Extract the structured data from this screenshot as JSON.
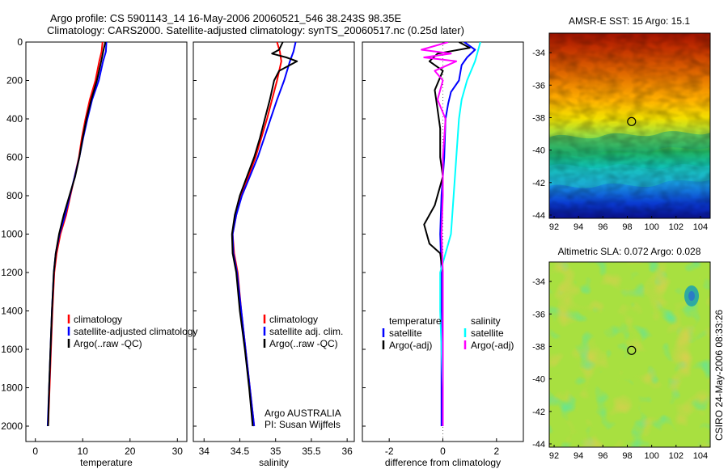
{
  "header": {
    "line1": "Argo profile: CS 5901143_14 16-May-2006 20060521_546 38.243S 98.35E",
    "line2": "Climatology: CARS2000. Satellite-adjusted climatology: synTS_20060517.nc (0.25d later)"
  },
  "side_label": "CSIRO 24-May-2006 08:33:26",
  "colors": {
    "red": "#ff0000",
    "blue": "#0000ff",
    "black": "#000000",
    "cyan": "#00ffff",
    "magenta": "#ff00ff",
    "marker": "#222222"
  },
  "chart_data": [
    {
      "type": "line",
      "xlabel": "temperature",
      "xticks": [
        0,
        10,
        20,
        30
      ],
      "xlim": [
        -2,
        32
      ],
      "yticks": [
        0,
        200,
        400,
        600,
        800,
        1000,
        1200,
        1400,
        1600,
        1800,
        2000
      ],
      "ylim": [
        2080,
        0
      ],
      "legend": [
        "climatology",
        "satellite-adjusted climatology",
        "Argo(..raw -QC)"
      ],
      "series": [
        {
          "name": "climatology",
          "color": "red",
          "points": [
            [
              14.2,
              0
            ],
            [
              14.0,
              50
            ],
            [
              13.5,
              100
            ],
            [
              12.7,
              200
            ],
            [
              11.5,
              300
            ],
            [
              10.6,
              400
            ],
            [
              9.8,
              500
            ],
            [
              9.2,
              600
            ],
            [
              8.3,
              700
            ],
            [
              7.4,
              800
            ],
            [
              6.5,
              900
            ],
            [
              5.3,
              1000
            ],
            [
              4.5,
              1100
            ],
            [
              4.0,
              1200
            ],
            [
              3.6,
              1400
            ],
            [
              3.3,
              1600
            ],
            [
              3.0,
              1800
            ],
            [
              2.7,
              2000
            ]
          ]
        },
        {
          "name": "satellite-adjusted climatology",
          "color": "blue",
          "points": [
            [
              15.0,
              0
            ],
            [
              14.9,
              50
            ],
            [
              14.3,
              100
            ],
            [
              13.4,
              200
            ],
            [
              12.0,
              300
            ],
            [
              11.0,
              400
            ],
            [
              10.1,
              500
            ],
            [
              9.3,
              600
            ],
            [
              8.3,
              700
            ],
            [
              7.3,
              800
            ],
            [
              6.3,
              900
            ],
            [
              5.1,
              1000
            ],
            [
              4.3,
              1100
            ],
            [
              3.9,
              1200
            ],
            [
              3.5,
              1400
            ],
            [
              3.2,
              1600
            ],
            [
              2.9,
              1800
            ],
            [
              2.6,
              2000
            ]
          ]
        },
        {
          "name": "Argo(..raw -QC)",
          "color": "black",
          "points": [
            [
              14.8,
              0
            ],
            [
              14.5,
              30
            ],
            [
              13.9,
              100
            ],
            [
              13.0,
              200
            ],
            [
              11.8,
              300
            ],
            [
              10.8,
              400
            ],
            [
              10.0,
              500
            ],
            [
              9.3,
              600
            ],
            [
              8.4,
              700
            ],
            [
              7.2,
              800
            ],
            [
              6.0,
              900
            ],
            [
              5.0,
              1000
            ],
            [
              4.3,
              1100
            ],
            [
              3.9,
              1200
            ],
            [
              3.5,
              1400
            ],
            [
              3.2,
              1600
            ],
            [
              2.9,
              1800
            ],
            [
              2.7,
              2000
            ]
          ]
        }
      ]
    },
    {
      "type": "line",
      "xlabel": "salinity",
      "xticks": [
        34,
        34.5,
        35,
        35.5,
        36
      ],
      "xlim": [
        33.85,
        36.1
      ],
      "yticks": [
        0,
        200,
        400,
        600,
        800,
        1000,
        1200,
        1400,
        1600,
        1800,
        2000
      ],
      "ylim": [
        2080,
        0
      ],
      "legend": [
        "climatology",
        "satellite adj. clim.",
        "Argo(..raw -QC)"
      ],
      "annotation": [
        "Argo AUSTRALIA",
        "PI: Susan Wijffels"
      ],
      "series": [
        {
          "name": "climatology",
          "color": "red",
          "points": [
            [
              35.02,
              0
            ],
            [
              35.06,
              50
            ],
            [
              35.08,
              100
            ],
            [
              35.02,
              200
            ],
            [
              34.95,
              300
            ],
            [
              34.88,
              400
            ],
            [
              34.8,
              500
            ],
            [
              34.72,
              600
            ],
            [
              34.62,
              700
            ],
            [
              34.52,
              800
            ],
            [
              34.45,
              900
            ],
            [
              34.4,
              1000
            ],
            [
              34.42,
              1100
            ],
            [
              34.47,
              1200
            ],
            [
              34.52,
              1400
            ],
            [
              34.58,
              1600
            ],
            [
              34.64,
              1800
            ],
            [
              34.7,
              2000
            ]
          ]
        },
        {
          "name": "satellite adj. clim.",
          "color": "blue",
          "points": [
            [
              35.28,
              0
            ],
            [
              35.25,
              50
            ],
            [
              35.2,
              100
            ],
            [
              35.12,
              200
            ],
            [
              35.02,
              300
            ],
            [
              34.93,
              400
            ],
            [
              34.84,
              500
            ],
            [
              34.75,
              600
            ],
            [
              34.64,
              700
            ],
            [
              34.53,
              800
            ],
            [
              34.45,
              900
            ],
            [
              34.4,
              1000
            ],
            [
              34.41,
              1100
            ],
            [
              34.46,
              1200
            ],
            [
              34.52,
              1400
            ],
            [
              34.58,
              1600
            ],
            [
              34.64,
              1800
            ],
            [
              34.7,
              2000
            ]
          ]
        },
        {
          "name": "Argo(..raw -QC)",
          "color": "black",
          "points": [
            [
              35.1,
              0
            ],
            [
              35.05,
              40
            ],
            [
              34.95,
              60
            ],
            [
              35.15,
              80
            ],
            [
              35.3,
              100
            ],
            [
              35.05,
              150
            ],
            [
              34.98,
              200
            ],
            [
              34.92,
              300
            ],
            [
              34.85,
              400
            ],
            [
              34.78,
              500
            ],
            [
              34.7,
              600
            ],
            [
              34.6,
              700
            ],
            [
              34.5,
              800
            ],
            [
              34.43,
              900
            ],
            [
              34.39,
              1000
            ],
            [
              34.4,
              1100
            ],
            [
              34.45,
              1200
            ],
            [
              34.5,
              1400
            ],
            [
              34.57,
              1600
            ],
            [
              34.63,
              1800
            ],
            [
              34.68,
              2000
            ]
          ]
        }
      ]
    },
    {
      "type": "line",
      "xlabel": "difference from climatology",
      "xticks": [
        -2,
        0,
        2
      ],
      "xlim": [
        -3,
        3
      ],
      "yticks": [
        0,
        200,
        400,
        600,
        800,
        1000,
        1200,
        1400,
        1600,
        1800,
        2000
      ],
      "ylim": [
        2080,
        0
      ],
      "legend_left_title": "temperature",
      "legend_left": [
        "satellite",
        "Argo(-adj)"
      ],
      "legend_right_title": "salinity",
      "legend_right": [
        "satellite",
        "Argo(-adj)"
      ],
      "series": [
        {
          "name": "satellite",
          "group": "temperature",
          "color": "blue",
          "points": [
            [
              0.8,
              0
            ],
            [
              1.2,
              40
            ],
            [
              0.9,
              80
            ],
            [
              0.7,
              120
            ],
            [
              0.6,
              200
            ],
            [
              0.3,
              260
            ],
            [
              0.2,
              320
            ],
            [
              0.1,
              400
            ],
            [
              0.05,
              600
            ],
            [
              -0.05,
              800
            ],
            [
              -0.1,
              1000
            ],
            [
              -0.05,
              1200
            ],
            [
              -0.05,
              1400
            ],
            [
              -0.05,
              1600
            ],
            [
              -0.05,
              1800
            ],
            [
              -0.05,
              2000
            ]
          ]
        },
        {
          "name": "Argo(-adj)",
          "group": "temperature",
          "color": "black",
          "points": [
            [
              0.6,
              0
            ],
            [
              1.0,
              30
            ],
            [
              -0.2,
              60
            ],
            [
              -0.5,
              100
            ],
            [
              0.0,
              150
            ],
            [
              -0.3,
              250
            ],
            [
              -0.2,
              350
            ],
            [
              -0.1,
              450
            ],
            [
              -0.1,
              600
            ],
            [
              0.0,
              700
            ],
            [
              -0.3,
              850
            ],
            [
              -0.7,
              950
            ],
            [
              -0.5,
              1050
            ],
            [
              -0.1,
              1100
            ],
            [
              0.0,
              1200
            ],
            [
              0.0,
              1400
            ],
            [
              0.0,
              1600
            ],
            [
              0.0,
              1800
            ],
            [
              0.0,
              2000
            ]
          ]
        },
        {
          "name": "satellite",
          "group": "salinity",
          "color": "cyan",
          "points": [
            [
              1.4,
              0
            ],
            [
              1.3,
              50
            ],
            [
              1.2,
              100
            ],
            [
              0.9,
              200
            ],
            [
              0.7,
              300
            ],
            [
              0.6,
              400
            ],
            [
              0.5,
              600
            ],
            [
              0.4,
              800
            ],
            [
              0.3,
              1000
            ],
            [
              0.1,
              1100
            ],
            [
              -0.1,
              1200
            ],
            [
              -0.1,
              1400
            ],
            [
              -0.05,
              1600
            ],
            [
              0.0,
              1800
            ],
            [
              0.0,
              2000
            ]
          ]
        },
        {
          "name": "Argo(-adj)",
          "group": "salinity",
          "color": "magenta",
          "points": [
            [
              0.2,
              0
            ],
            [
              -0.8,
              40
            ],
            [
              0.3,
              60
            ],
            [
              -0.7,
              80
            ],
            [
              0.5,
              100
            ],
            [
              -0.3,
              150
            ],
            [
              0.0,
              200
            ],
            [
              -0.2,
              300
            ],
            [
              0.1,
              400
            ],
            [
              0.0,
              600
            ],
            [
              0.0,
              800
            ],
            [
              -0.05,
              1000
            ],
            [
              0.0,
              1200
            ],
            [
              0.0,
              1400
            ],
            [
              0.0,
              1600
            ],
            [
              0.0,
              1800
            ],
            [
              0.0,
              2000
            ]
          ]
        }
      ]
    },
    {
      "type": "heatmap",
      "title": "AMSR-E SST: 15 Argo: 15.1",
      "xticks": [
        92,
        94,
        96,
        98,
        100,
        102,
        104
      ],
      "yticks": [
        -34,
        -36,
        -38,
        -40,
        -42,
        -44
      ],
      "xlim": [
        91.6,
        104.8
      ],
      "ylim": [
        -44.2,
        -32.8
      ],
      "marker": {
        "lon": 98.35,
        "lat": -38.24
      }
    },
    {
      "type": "heatmap",
      "title": "Altimetric SLA: 0.072 Argo: 0.028",
      "xticks": [
        92,
        94,
        96,
        98,
        100,
        102,
        104
      ],
      "yticks": [
        -34,
        -36,
        -38,
        -40,
        -42,
        -44
      ],
      "xlim": [
        91.6,
        104.8
      ],
      "ylim": [
        -44.2,
        -32.8
      ],
      "marker": {
        "lon": 98.35,
        "lat": -38.24
      }
    }
  ]
}
